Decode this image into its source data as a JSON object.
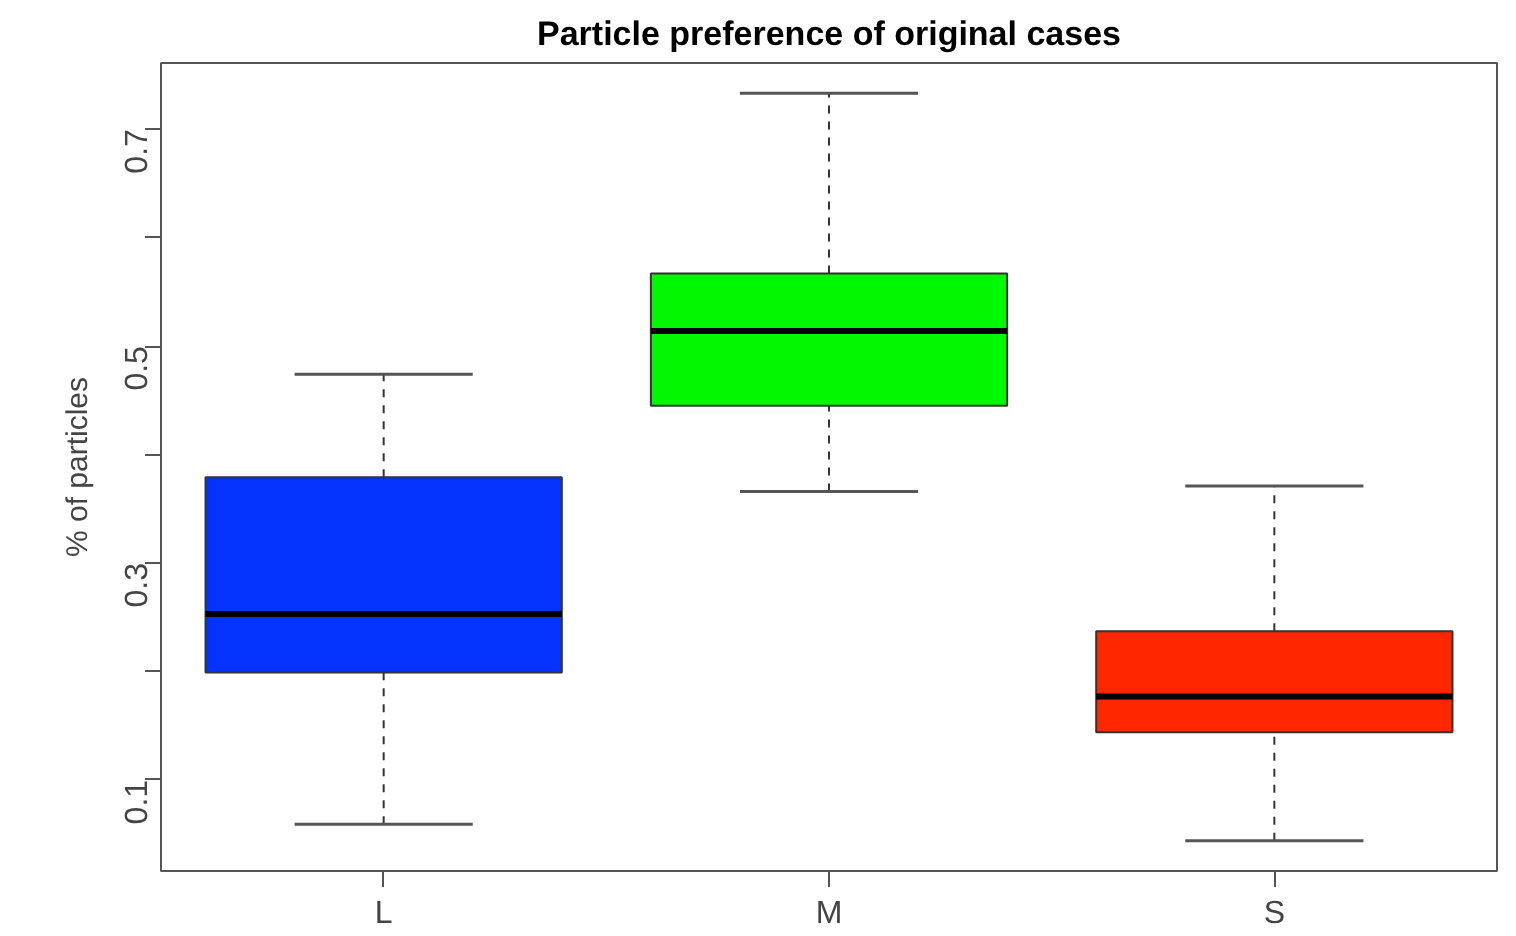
{
  "chart_data": {
    "type": "box",
    "title": "Particle preference of original cases",
    "ylabel": "% of particles",
    "categories": [
      "L",
      "M",
      "S"
    ],
    "colors": [
      "#0433ff",
      "#00f900",
      "#ff2600"
    ],
    "boxes": [
      {
        "low": 0.059,
        "q1": 0.199,
        "median": 0.253,
        "q3": 0.379,
        "high": 0.474
      },
      {
        "low": 0.366,
        "q1": 0.445,
        "median": 0.514,
        "q3": 0.567,
        "high": 0.733
      },
      {
        "low": 0.044,
        "q1": 0.144,
        "median": 0.177,
        "q3": 0.237,
        "high": 0.371
      }
    ],
    "ylim": [
      0.016,
      0.761
    ],
    "yticks": [
      0.1,
      {
        "value": 0.2,
        "label": null
      },
      0.3,
      {
        "value": 0.4,
        "label": null
      },
      0.5,
      {
        "value": 0.6,
        "label": null
      },
      0.7
    ],
    "grid": false
  }
}
